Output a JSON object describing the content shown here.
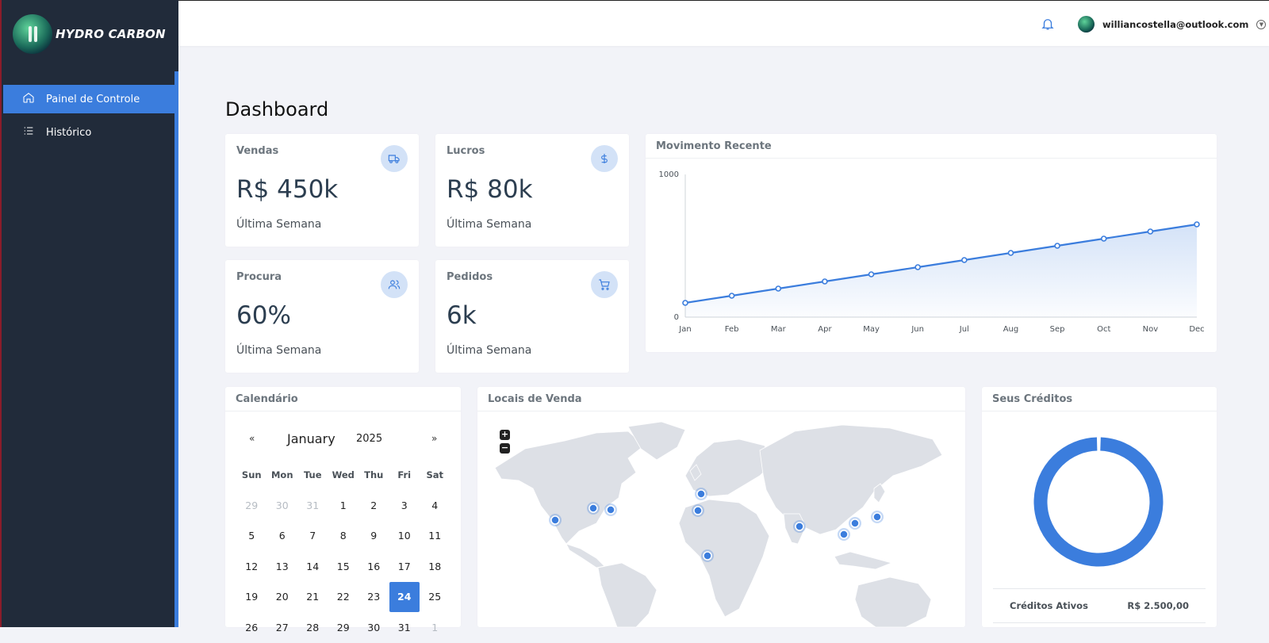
{
  "app": {
    "logo_text": "HYDRO CARBON"
  },
  "sidebar": {
    "items": [
      {
        "label": "Painel de Controle",
        "icon": "home-icon",
        "active": true
      },
      {
        "label": "Histórico",
        "icon": "list-icon",
        "active": false
      }
    ]
  },
  "topbar": {
    "user_email": "williancostella@outlook.com"
  },
  "page": {
    "title": "Dashboard"
  },
  "stats": [
    {
      "label": "Vendas",
      "value": "R$ 450k",
      "sub": "Última Semana",
      "icon": "truck-icon"
    },
    {
      "label": "Lucros",
      "value": "R$ 80k",
      "sub": "Última Semana",
      "icon": "dollar-icon"
    },
    {
      "label": "Procura",
      "value": "60%",
      "sub": "Última Semana",
      "icon": "users-icon"
    },
    {
      "label": "Pedidos",
      "value": "6k",
      "sub": "Última Semana",
      "icon": "cart-icon"
    }
  ],
  "movement": {
    "title": "Movimento Recente"
  },
  "chart_data": {
    "type": "area",
    "title": "Movimento Recente",
    "xlabel": "",
    "ylabel": "",
    "categories": [
      "Jan",
      "Feb",
      "Mar",
      "Apr",
      "May",
      "Jun",
      "Jul",
      "Aug",
      "Sep",
      "Oct",
      "Nov",
      "Dec"
    ],
    "series": [
      {
        "values": [
          100,
          150,
          200,
          250,
          300,
          350,
          400,
          450,
          500,
          550,
          600,
          650
        ]
      }
    ],
    "ylim": [
      0,
      1000
    ],
    "y_ticks": [
      "0",
      "1000"
    ],
    "grid": false,
    "color": "#3b7ddd"
  },
  "calendar": {
    "title": "Calendário",
    "prev": "«",
    "next": "»",
    "month": "January",
    "year": "2025",
    "weekdays": [
      "Sun",
      "Mon",
      "Tue",
      "Wed",
      "Thu",
      "Fri",
      "Sat"
    ],
    "weeks": [
      [
        "29",
        "30",
        "31",
        "1",
        "2",
        "3",
        "4"
      ],
      [
        "5",
        "6",
        "7",
        "8",
        "9",
        "10",
        "11"
      ],
      [
        "12",
        "13",
        "14",
        "15",
        "16",
        "17",
        "18"
      ],
      [
        "19",
        "20",
        "21",
        "22",
        "23",
        "24",
        "25"
      ],
      [
        "26",
        "27",
        "28",
        "29",
        "30",
        "31",
        "1"
      ]
    ],
    "selected": "24"
  },
  "map": {
    "title": "Locais de Venda",
    "zoom_in": "+",
    "zoom_out": "−",
    "marker_color": "#3b7ddd"
  },
  "credits": {
    "title": "Seus Créditos",
    "active_label": "Créditos Ativos",
    "active_value": "R$ 2.500,00",
    "ring_fraction": 0.99,
    "ring_color": "#3b7ddd"
  }
}
